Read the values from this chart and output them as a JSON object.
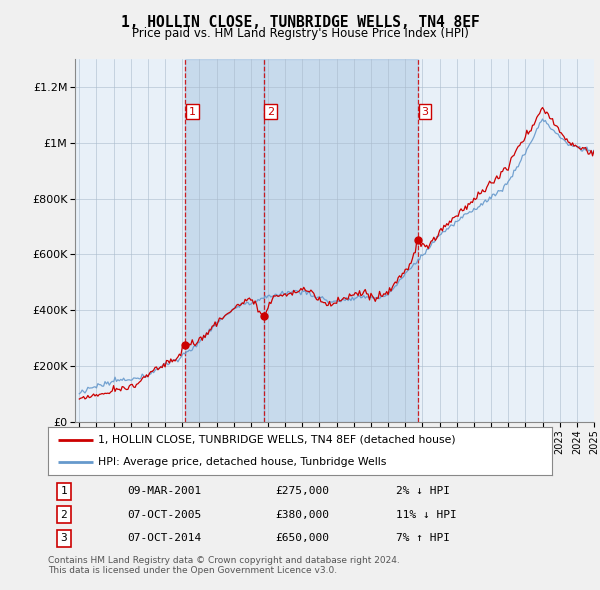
{
  "title": "1, HOLLIN CLOSE, TUNBRIDGE WELLS, TN4 8EF",
  "subtitle": "Price paid vs. HM Land Registry's House Price Index (HPI)",
  "legend_line1": "1, HOLLIN CLOSE, TUNBRIDGE WELLS, TN4 8EF (detached house)",
  "legend_line2": "HPI: Average price, detached house, Tunbridge Wells",
  "sale1_date": "09-MAR-2001",
  "sale1_price": 275000,
  "sale1_rel": "2% ↓ HPI",
  "sale2_date": "07-OCT-2005",
  "sale2_price": 380000,
  "sale2_rel": "11% ↓ HPI",
  "sale3_date": "07-OCT-2014",
  "sale3_price": 650000,
  "sale3_rel": "7% ↑ HPI",
  "copyright": "Contains HM Land Registry data © Crown copyright and database right 2024.\nThis data is licensed under the Open Government Licence v3.0.",
  "red_color": "#cc0000",
  "blue_color": "#6699cc",
  "shade_color": "#ddeeff",
  "vline_color": "#cc0000",
  "background_color": "#f0f0f0",
  "plot_bg": "#e8f0f8",
  "ylim": [
    0,
    1300000
  ],
  "yticks": [
    0,
    200000,
    400000,
    600000,
    800000,
    1000000,
    1200000
  ],
  "ytick_labels": [
    "£0",
    "£200K",
    "£400K",
    "£600K",
    "£800K",
    "£1M",
    "£1.2M"
  ],
  "year_start": 1995,
  "year_end": 2025,
  "sale_years": [
    2001.19,
    2005.75,
    2014.75
  ]
}
